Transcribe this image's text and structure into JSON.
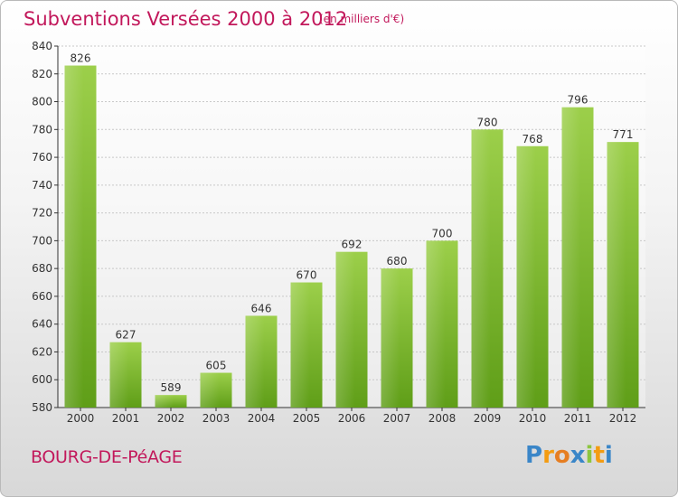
{
  "header": {
    "title": "Subventions Versées 2000 à 2012",
    "unit_note": "(en milliers d'€)"
  },
  "footer": {
    "commune": "BOURG-DE-PéAGE",
    "logo_letters": [
      {
        "ch": "P",
        "color": "#3a86c8"
      },
      {
        "ch": "r",
        "color": "#f39c12"
      },
      {
        "ch": "o",
        "color": "#e67e22"
      },
      {
        "ch": "x",
        "color": "#3a86c8"
      },
      {
        "ch": "i",
        "color": "#8cc63f"
      },
      {
        "ch": "t",
        "color": "#f39c12"
      },
      {
        "ch": "i",
        "color": "#3a86c8"
      }
    ]
  },
  "colors": {
    "accent": "#c2185b",
    "bar_top": "#9ccf4a",
    "bar_bottom": "#5f9e18",
    "grid": "#c8c8c8",
    "axis": "#333333"
  },
  "chart_data": {
    "type": "bar",
    "categories": [
      "2000",
      "2001",
      "2002",
      "2003",
      "2004",
      "2005",
      "2006",
      "2007",
      "2008",
      "2009",
      "2010",
      "2011",
      "2012"
    ],
    "values": [
      826,
      627,
      589,
      605,
      646,
      670,
      692,
      680,
      700,
      780,
      768,
      796,
      771
    ],
    "ylim": [
      580,
      840
    ],
    "yticks": [
      580,
      600,
      620,
      640,
      660,
      680,
      700,
      720,
      740,
      760,
      780,
      800,
      820,
      840
    ],
    "grid": true,
    "xlabel": "",
    "ylabel": ""
  }
}
